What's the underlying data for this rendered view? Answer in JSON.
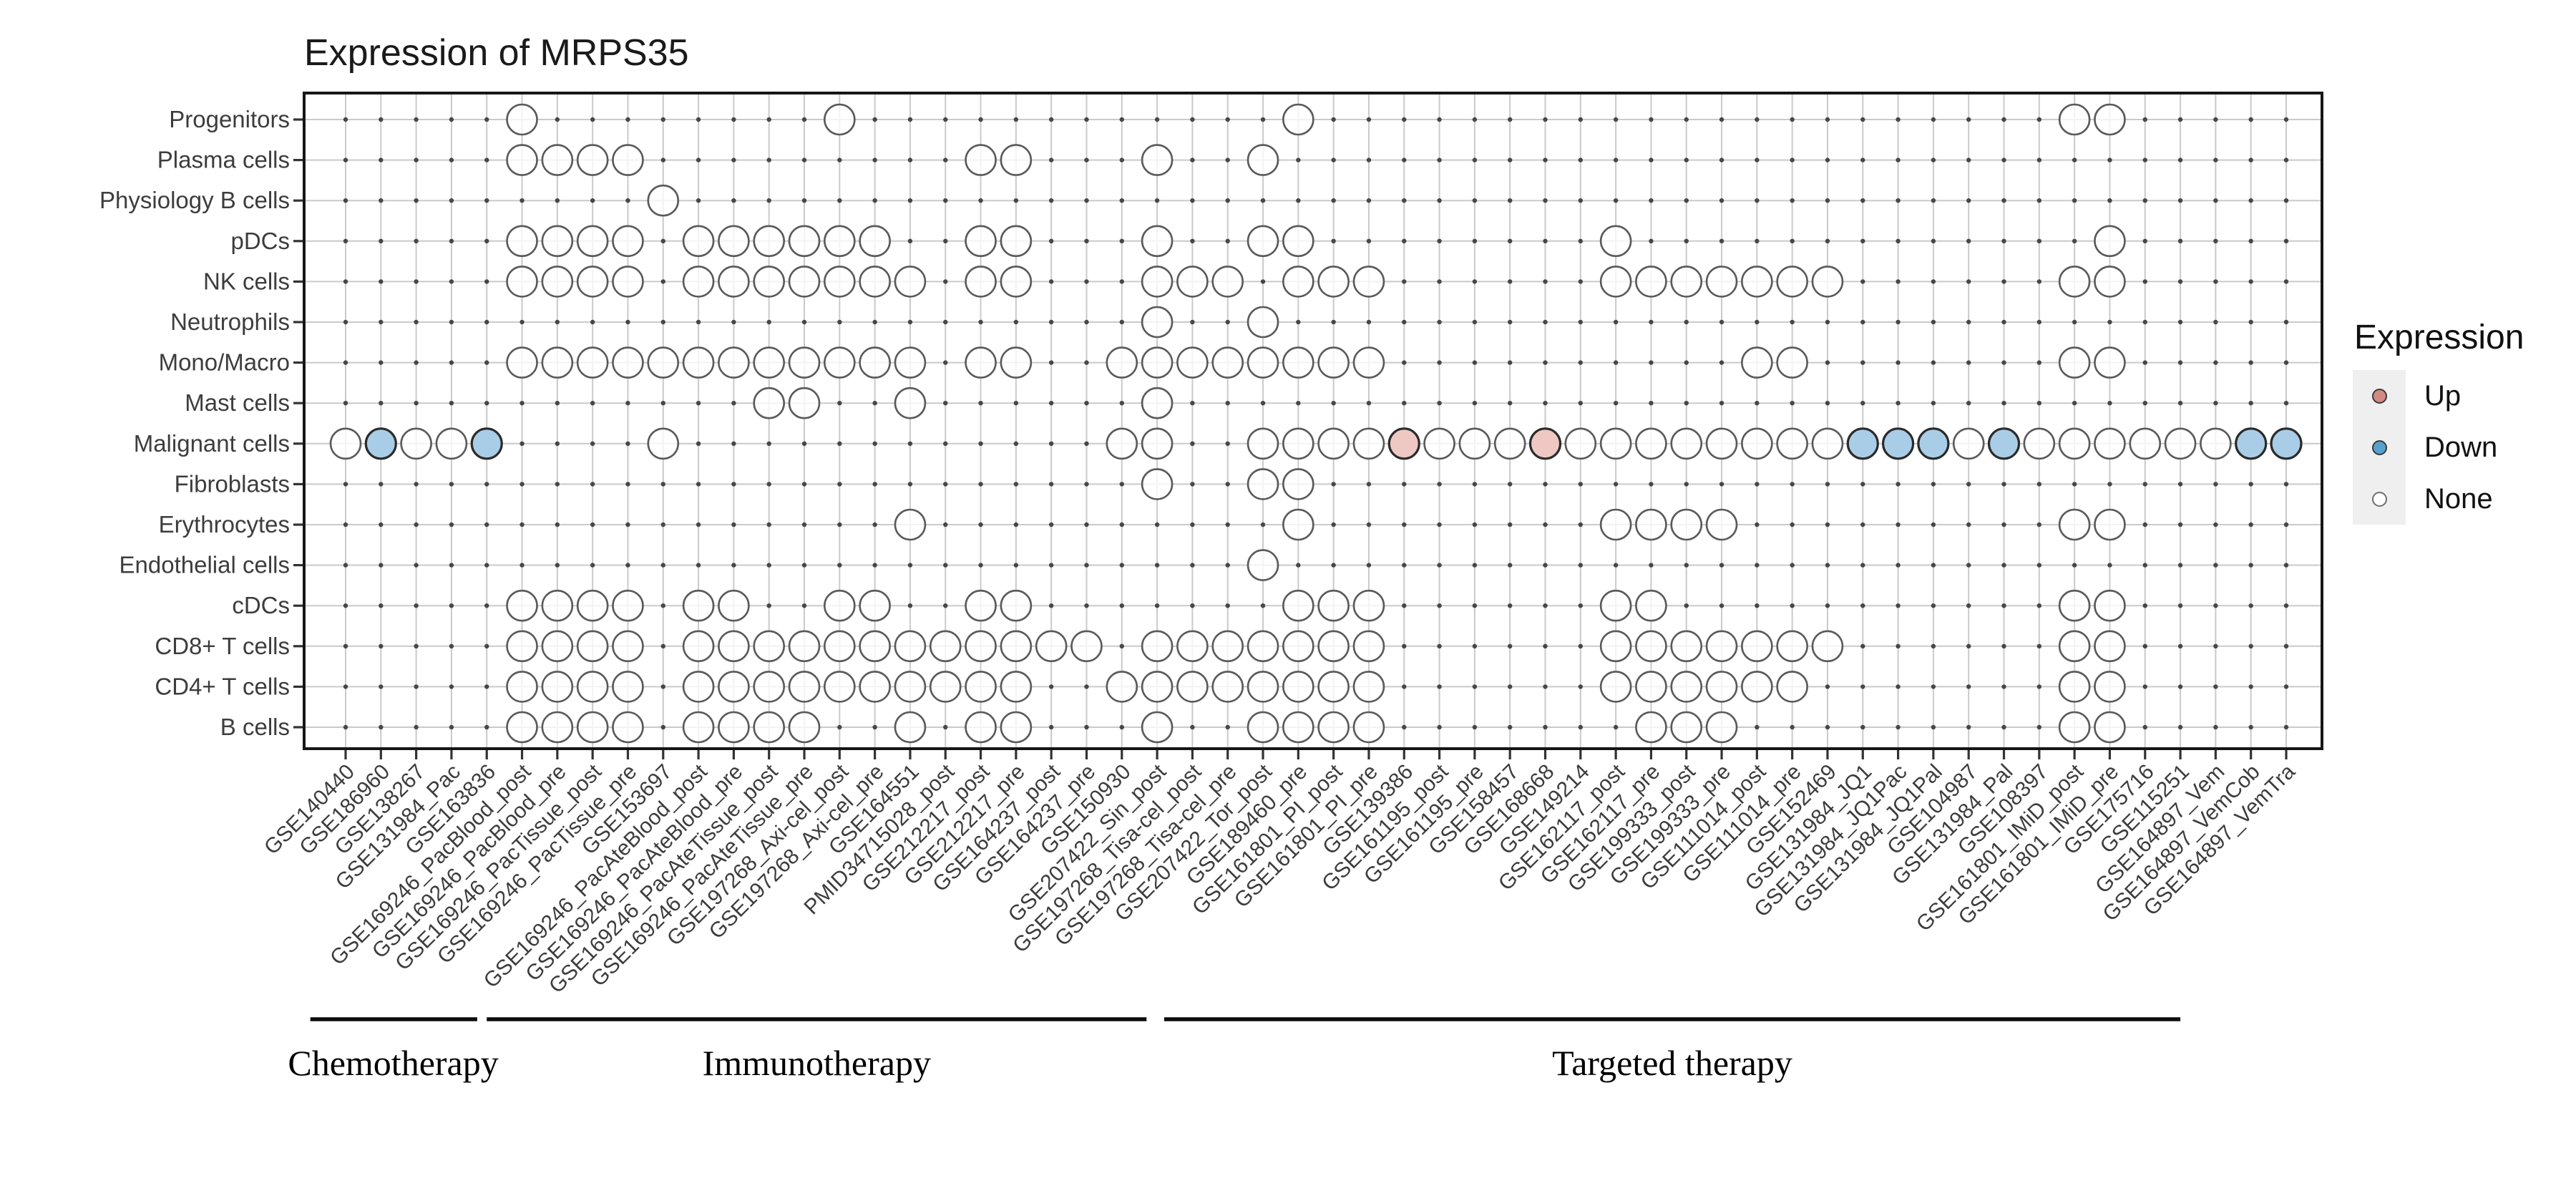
{
  "title": "Expression of MRPS35",
  "legend": {
    "title": "Expression",
    "items": [
      {
        "label": "Up",
        "fill": "#d28b84",
        "stroke": "#3a3a3a"
      },
      {
        "label": "Down",
        "fill": "#58a1cf",
        "stroke": "#3a3a3a"
      },
      {
        "label": "None",
        "fill": "#ffffff",
        "stroke": "#6e6e6e"
      }
    ]
  },
  "chart_data": {
    "type": "scatter",
    "title": "Expression of MRPS35",
    "legend_position": "right",
    "grid": true,
    "x_categories": [
      "GSE140440",
      "GSE186960",
      "GSE138267",
      "GSE131984_Pac",
      "GSE163836",
      "GSE169246_PacBlood_post",
      "GSE169246_PacBlood_pre",
      "GSE169246_PacTissue_post",
      "GSE169246_PacTissue_pre",
      "GSE153697",
      "GSE169246_PacAteBlood_post",
      "GSE169246_PacAteBlood_pre",
      "GSE169246_PacAteTissue_post",
      "GSE169246_PacAteTissue_pre",
      "GSE197268_Axi-cel_post",
      "GSE197268_Axi-cel_pre",
      "GSE164551",
      "PMID34715028_post",
      "GSE212217_post",
      "GSE212217_pre",
      "GSE164237_post",
      "GSE164237_pre",
      "GSE150930",
      "GSE207422_Sin_post",
      "GSE197268_Tisa-cel_post",
      "GSE197268_Tisa-cel_pre",
      "GSE207422_Tor_post",
      "GSE189460_pre",
      "GSE161801_PI_post",
      "GSE161801_PI_pre",
      "GSE139386",
      "GSE161195_post",
      "GSE161195_pre",
      "GSE158457",
      "GSE168668",
      "GSE149214",
      "GSE162117_post",
      "GSE162117_pre",
      "GSE199333_post",
      "GSE199333_pre",
      "GSE111014_post",
      "GSE111014_pre",
      "GSE152469",
      "GSE131984_JQ1",
      "GSE131984_JQ1Pac",
      "GSE131984_JQ1Pal",
      "GSE104987",
      "GSE131984_Pal",
      "GSE108397",
      "GSE161801_IMiD_post",
      "GSE161801_IMiD_pre",
      "GSE175716",
      "GSE115251",
      "GSE164897_Vem",
      "GSE164897_VemCob",
      "GSE164897_VemTra"
    ],
    "y_categories": [
      "Progenitors",
      "Plasma cells",
      "Physiology B cells",
      "pDCs",
      "NK cells",
      "Neutrophils",
      "Mono/Macro",
      "Mast cells",
      "Malignant cells",
      "Fibroblasts",
      "Erythrocytes",
      "Endothelial cells",
      "cDCs",
      "CD8+ T cells",
      "CD4+ T cells",
      "B cells"
    ],
    "groups": [
      {
        "label": "Chemotherapy",
        "line_from_col": 0.0,
        "line_to_col": 4.73,
        "label_at_col": 2.35
      },
      {
        "label": "Immunotherapy",
        "line_from_col": 5.0,
        "line_to_col": 23.7,
        "label_at_col": 14.35
      },
      {
        "label": "Targeted therapy",
        "line_from_col": 24.2,
        "line_to_col": 53.0,
        "label_at_col": 38.6
      }
    ],
    "cells": [
      {
        "row": "Progenitors",
        "none": [
          6,
          15,
          28,
          50,
          51
        ],
        "up": [],
        "down": []
      },
      {
        "row": "Plasma cells",
        "none": [
          6,
          7,
          8,
          9,
          19,
          20,
          24,
          27
        ],
        "up": [],
        "down": []
      },
      {
        "row": "Physiology B cells",
        "none": [
          10
        ],
        "up": [],
        "down": []
      },
      {
        "row": "pDCs",
        "none": [
          6,
          7,
          8,
          9,
          11,
          12,
          13,
          14,
          15,
          16,
          19,
          20,
          24,
          27,
          28,
          37,
          51
        ],
        "up": [],
        "down": []
      },
      {
        "row": "NK cells",
        "none": [
          6,
          7,
          8,
          9,
          11,
          12,
          13,
          14,
          15,
          16,
          17,
          19,
          20,
          24,
          25,
          26,
          28,
          29,
          30,
          37,
          38,
          39,
          40,
          41,
          42,
          43,
          50,
          51
        ],
        "up": [],
        "down": []
      },
      {
        "row": "Neutrophils",
        "none": [
          24,
          27
        ],
        "up": [],
        "down": []
      },
      {
        "row": "Mono/Macro",
        "none": [
          6,
          7,
          8,
          9,
          10,
          11,
          12,
          13,
          14,
          15,
          16,
          17,
          19,
          20,
          23,
          24,
          25,
          26,
          27,
          28,
          29,
          30,
          41,
          42,
          50,
          51
        ],
        "up": [],
        "down": []
      },
      {
        "row": "Mast cells",
        "none": [
          13,
          14,
          17,
          24
        ],
        "up": [],
        "down": []
      },
      {
        "row": "Malignant cells",
        "none": [
          1,
          3,
          4,
          10,
          23,
          24,
          27,
          28,
          29,
          30,
          32,
          33,
          34,
          36,
          37,
          38,
          39,
          40,
          41,
          42,
          43,
          47,
          49,
          50,
          51,
          52,
          53,
          54
        ],
        "up": [
          31,
          35
        ],
        "down": [
          2,
          5,
          44,
          45,
          46,
          48,
          55,
          56
        ]
      },
      {
        "row": "Fibroblasts",
        "none": [
          24,
          27,
          28
        ],
        "up": [],
        "down": []
      },
      {
        "row": "Erythrocytes",
        "none": [
          17,
          28,
          37,
          38,
          39,
          40,
          50,
          51
        ],
        "up": [],
        "down": []
      },
      {
        "row": "Endothelial cells",
        "none": [
          27
        ],
        "up": [],
        "down": []
      },
      {
        "row": "cDCs",
        "none": [
          6,
          7,
          8,
          9,
          11,
          12,
          15,
          16,
          19,
          20,
          28,
          29,
          30,
          37,
          38,
          50,
          51
        ],
        "up": [],
        "down": []
      },
      {
        "row": "CD8+ T cells",
        "none": [
          6,
          7,
          8,
          9,
          11,
          12,
          13,
          14,
          15,
          16,
          17,
          18,
          19,
          20,
          21,
          22,
          24,
          25,
          26,
          27,
          28,
          29,
          30,
          37,
          38,
          39,
          40,
          41,
          42,
          43,
          50,
          51
        ],
        "up": [],
        "down": []
      },
      {
        "row": "CD4+ T cells",
        "none": [
          6,
          7,
          8,
          9,
          11,
          12,
          13,
          14,
          15,
          16,
          17,
          18,
          19,
          20,
          23,
          24,
          25,
          26,
          27,
          28,
          29,
          30,
          37,
          38,
          39,
          40,
          41,
          42,
          50,
          51
        ],
        "up": [],
        "down": []
      },
      {
        "row": "B cells",
        "none": [
          6,
          7,
          8,
          9,
          11,
          12,
          13,
          14,
          17,
          19,
          20,
          24,
          27,
          28,
          29,
          30,
          38,
          39,
          40,
          50,
          51
        ],
        "up": [],
        "down": []
      }
    ],
    "point_states": {
      "none": {
        "fill": "rgba(255,255,255,0.78)",
        "stroke": "#5a5a5a",
        "stroke_width": 2.6
      },
      "up": {
        "fill": "#efc8c3",
        "stroke": "#2b2b2b",
        "stroke_width": 3.2
      },
      "down": {
        "fill": "#a9cde6",
        "stroke": "#2b2b2b",
        "stroke_width": 3.2
      }
    },
    "axis_ranges": {
      "columns": 56,
      "rows": 16
    }
  }
}
